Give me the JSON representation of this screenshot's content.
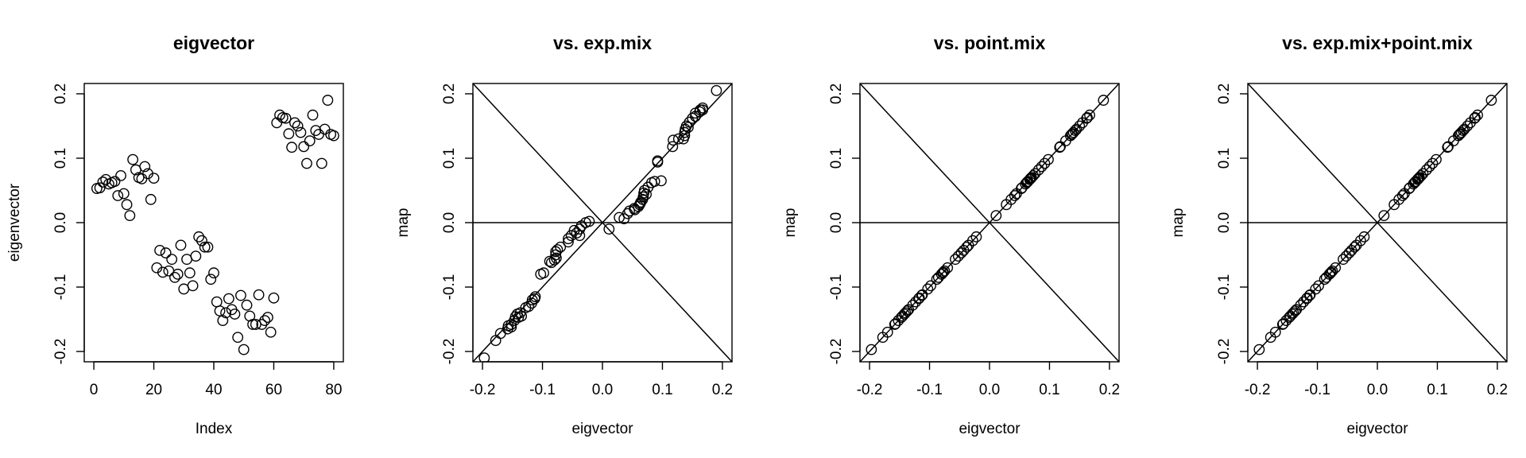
{
  "chart_data": [
    {
      "type": "scatter",
      "title": "eigvector",
      "xlabel": "Index",
      "ylabel": "eigenvector",
      "xlim": [
        0,
        80
      ],
      "ylim": [
        -0.2,
        0.2
      ],
      "xticks": [
        "0",
        "20",
        "40",
        "60",
        "80"
      ],
      "yticks": [
        "-0.2",
        "-0.1",
        "0.0",
        "0.1",
        "0.2"
      ],
      "reference_lines": [],
      "series": [
        {
          "x": [
            1,
            2,
            3,
            4,
            5,
            6,
            7,
            8,
            9,
            10,
            11,
            12,
            13,
            14,
            15,
            16,
            17,
            18,
            19,
            20,
            21,
            22,
            23,
            24,
            25,
            26,
            27,
            28,
            29,
            30,
            31,
            32,
            33,
            34,
            35,
            36,
            37,
            38,
            39,
            40,
            41,
            42,
            43,
            44,
            45,
            46,
            47,
            48,
            49,
            50,
            51,
            52,
            53,
            54,
            55,
            56,
            57,
            58,
            59,
            60,
            61,
            62,
            63,
            64,
            65,
            66,
            67,
            68,
            69,
            70,
            71,
            72,
            73,
            74,
            75,
            76,
            77,
            78,
            79,
            80
          ],
          "y": [
            0.053,
            0.054,
            0.063,
            0.067,
            0.06,
            0.062,
            0.064,
            0.042,
            0.073,
            0.045,
            0.028,
            0.011,
            0.098,
            0.082,
            0.07,
            0.068,
            0.087,
            0.076,
            0.036,
            0.069,
            -0.07,
            -0.043,
            -0.077,
            -0.047,
            -0.075,
            -0.057,
            -0.085,
            -0.08,
            -0.035,
            -0.103,
            -0.057,
            -0.078,
            -0.098,
            -0.052,
            -0.022,
            -0.028,
            -0.038,
            -0.038,
            -0.088,
            -0.078,
            -0.123,
            -0.137,
            -0.152,
            -0.14,
            -0.118,
            -0.135,
            -0.142,
            -0.178,
            -0.113,
            -0.197,
            -0.128,
            -0.145,
            -0.158,
            -0.158,
            -0.112,
            -0.158,
            -0.152,
            -0.147,
            -0.17,
            -0.117,
            0.155,
            0.167,
            0.163,
            0.162,
            0.138,
            0.117,
            0.155,
            0.15,
            0.14,
            0.118,
            0.092,
            0.127,
            0.167,
            0.143,
            0.137,
            0.092,
            0.145,
            0.19,
            0.137,
            0.135
          ]
        }
      ]
    },
    {
      "type": "scatter",
      "title": "vs. exp.mix",
      "xlabel": "eigvector",
      "ylabel": "map",
      "xlim": [
        -0.2,
        0.2
      ],
      "ylim": [
        -0.2,
        0.2
      ],
      "xticks": [
        "-0.2",
        "-0.1",
        "0.0",
        "0.1",
        "0.2"
      ],
      "yticks": [
        "-0.2",
        "-0.1",
        "0.0",
        "0.1",
        "0.2"
      ],
      "reference_lines": [
        {
          "intercept": 0,
          "slope": 1
        },
        {
          "intercept": 0,
          "slope": -1
        },
        {
          "h": 0
        }
      ],
      "series": [
        {
          "x": [
            -0.197,
            -0.178,
            -0.17,
            -0.158,
            -0.157,
            -0.152,
            -0.152,
            -0.147,
            -0.145,
            -0.142,
            -0.14,
            -0.137,
            -0.135,
            -0.128,
            -0.123,
            -0.118,
            -0.117,
            -0.113,
            -0.112,
            -0.103,
            -0.098,
            -0.088,
            -0.085,
            -0.08,
            -0.078,
            -0.078,
            -0.077,
            -0.075,
            -0.07,
            -0.057,
            -0.057,
            -0.052,
            -0.047,
            -0.043,
            -0.038,
            -0.038,
            -0.035,
            -0.028,
            -0.022,
            0.011,
            0.028,
            0.036,
            0.042,
            0.045,
            0.053,
            0.054,
            0.06,
            0.062,
            0.063,
            0.064,
            0.067,
            0.068,
            0.069,
            0.07,
            0.073,
            0.076,
            0.082,
            0.087,
            0.092,
            0.092,
            0.098,
            0.117,
            0.118,
            0.127,
            0.135,
            0.137,
            0.137,
            0.138,
            0.14,
            0.143,
            0.145,
            0.15,
            0.155,
            0.155,
            0.162,
            0.163,
            0.167,
            0.167,
            0.19
          ],
          "y": [
            -0.21,
            -0.183,
            -0.172,
            -0.165,
            -0.16,
            -0.158,
            -0.162,
            -0.152,
            -0.146,
            -0.142,
            -0.147,
            -0.14,
            -0.145,
            -0.132,
            -0.13,
            -0.125,
            -0.12,
            -0.118,
            -0.115,
            -0.08,
            -0.078,
            -0.06,
            -0.062,
            -0.058,
            -0.05,
            -0.045,
            -0.055,
            -0.042,
            -0.038,
            -0.025,
            -0.03,
            -0.02,
            -0.012,
            -0.016,
            -0.01,
            -0.02,
            -0.005,
            0.0,
            0.002,
            -0.01,
            0.008,
            0.006,
            0.014,
            0.018,
            0.022,
            0.02,
            0.025,
            0.028,
            0.03,
            0.032,
            0.036,
            0.04,
            0.046,
            0.05,
            0.044,
            0.055,
            0.062,
            0.064,
            0.094,
            0.096,
            0.065,
            0.118,
            0.128,
            0.13,
            0.13,
            0.135,
            0.14,
            0.145,
            0.15,
            0.148,
            0.156,
            0.162,
            0.165,
            0.17,
            0.172,
            0.175,
            0.175,
            0.178,
            0.205
          ]
        }
      ]
    },
    {
      "type": "scatter",
      "title": "vs. point.mix",
      "xlabel": "eigvector",
      "ylabel": "map",
      "xlim": [
        -0.2,
        0.2
      ],
      "ylim": [
        -0.2,
        0.2
      ],
      "xticks": [
        "-0.2",
        "-0.1",
        "0.0",
        "0.1",
        "0.2"
      ],
      "yticks": [
        "-0.2",
        "-0.1",
        "0.0",
        "0.1",
        "0.2"
      ],
      "reference_lines": [
        {
          "intercept": 0,
          "slope": 1
        },
        {
          "intercept": 0,
          "slope": -1
        },
        {
          "h": 0
        }
      ],
      "series": [
        {
          "x": [
            -0.197,
            -0.178,
            -0.17,
            -0.158,
            -0.157,
            -0.152,
            -0.147,
            -0.145,
            -0.142,
            -0.14,
            -0.137,
            -0.135,
            -0.128,
            -0.123,
            -0.118,
            -0.117,
            -0.113,
            -0.112,
            -0.103,
            -0.098,
            -0.088,
            -0.085,
            -0.08,
            -0.078,
            -0.077,
            -0.075,
            -0.07,
            -0.057,
            -0.052,
            -0.047,
            -0.043,
            -0.038,
            -0.035,
            -0.028,
            -0.022,
            0.011,
            0.028,
            0.036,
            0.042,
            0.045,
            0.053,
            0.054,
            0.06,
            0.062,
            0.063,
            0.064,
            0.067,
            0.068,
            0.069,
            0.07,
            0.073,
            0.076,
            0.082,
            0.087,
            0.092,
            0.098,
            0.117,
            0.118,
            0.127,
            0.135,
            0.137,
            0.138,
            0.14,
            0.143,
            0.145,
            0.15,
            0.155,
            0.162,
            0.163,
            0.167,
            0.19
          ],
          "y": [
            -0.197,
            -0.178,
            -0.17,
            -0.158,
            -0.157,
            -0.152,
            -0.147,
            -0.145,
            -0.142,
            -0.14,
            -0.137,
            -0.135,
            -0.128,
            -0.123,
            -0.118,
            -0.117,
            -0.113,
            -0.112,
            -0.103,
            -0.098,
            -0.088,
            -0.085,
            -0.08,
            -0.078,
            -0.077,
            -0.075,
            -0.07,
            -0.057,
            -0.052,
            -0.047,
            -0.043,
            -0.038,
            -0.035,
            -0.028,
            -0.022,
            0.011,
            0.028,
            0.036,
            0.042,
            0.045,
            0.053,
            0.054,
            0.06,
            0.062,
            0.063,
            0.064,
            0.067,
            0.068,
            0.069,
            0.07,
            0.073,
            0.076,
            0.082,
            0.087,
            0.092,
            0.098,
            0.117,
            0.118,
            0.127,
            0.135,
            0.137,
            0.138,
            0.14,
            0.143,
            0.145,
            0.15,
            0.155,
            0.162,
            0.163,
            0.167,
            0.19
          ]
        }
      ]
    },
    {
      "type": "scatter",
      "title": "vs. exp.mix+point.mix",
      "xlabel": "eigvector",
      "ylabel": "map",
      "xlim": [
        -0.2,
        0.2
      ],
      "ylim": [
        -0.2,
        0.2
      ],
      "xticks": [
        "-0.2",
        "-0.1",
        "0.0",
        "0.1",
        "0.2"
      ],
      "yticks": [
        "-0.2",
        "-0.1",
        "0.0",
        "0.1",
        "0.2"
      ],
      "reference_lines": [
        {
          "intercept": 0,
          "slope": 1
        },
        {
          "intercept": 0,
          "slope": -1
        },
        {
          "h": 0
        }
      ],
      "series": [
        {
          "x": [
            -0.197,
            -0.178,
            -0.17,
            -0.158,
            -0.157,
            -0.152,
            -0.147,
            -0.145,
            -0.142,
            -0.14,
            -0.137,
            -0.135,
            -0.128,
            -0.123,
            -0.118,
            -0.117,
            -0.113,
            -0.112,
            -0.103,
            -0.098,
            -0.088,
            -0.085,
            -0.08,
            -0.078,
            -0.077,
            -0.075,
            -0.07,
            -0.057,
            -0.052,
            -0.047,
            -0.043,
            -0.038,
            -0.035,
            -0.028,
            -0.022,
            0.011,
            0.028,
            0.036,
            0.042,
            0.045,
            0.053,
            0.054,
            0.06,
            0.062,
            0.063,
            0.064,
            0.067,
            0.068,
            0.069,
            0.07,
            0.073,
            0.076,
            0.082,
            0.087,
            0.092,
            0.098,
            0.117,
            0.118,
            0.127,
            0.135,
            0.137,
            0.138,
            0.14,
            0.143,
            0.145,
            0.15,
            0.155,
            0.162,
            0.163,
            0.167,
            0.19
          ],
          "y": [
            -0.197,
            -0.178,
            -0.17,
            -0.158,
            -0.157,
            -0.152,
            -0.147,
            -0.145,
            -0.142,
            -0.14,
            -0.137,
            -0.135,
            -0.128,
            -0.123,
            -0.118,
            -0.117,
            -0.113,
            -0.112,
            -0.103,
            -0.098,
            -0.088,
            -0.085,
            -0.08,
            -0.078,
            -0.077,
            -0.075,
            -0.07,
            -0.057,
            -0.052,
            -0.047,
            -0.043,
            -0.038,
            -0.035,
            -0.028,
            -0.022,
            0.011,
            0.028,
            0.036,
            0.042,
            0.045,
            0.053,
            0.054,
            0.06,
            0.062,
            0.063,
            0.064,
            0.067,
            0.068,
            0.069,
            0.07,
            0.073,
            0.076,
            0.082,
            0.087,
            0.092,
            0.098,
            0.117,
            0.118,
            0.127,
            0.135,
            0.137,
            0.138,
            0.14,
            0.143,
            0.145,
            0.15,
            0.155,
            0.162,
            0.163,
            0.167,
            0.19
          ]
        }
      ]
    }
  ]
}
